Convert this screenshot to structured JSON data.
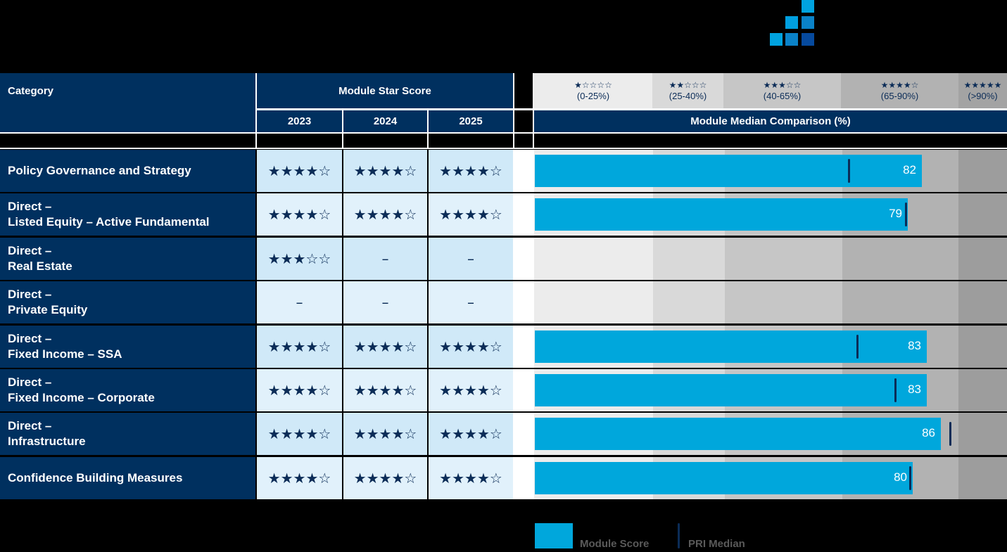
{
  "header": {
    "category_label": "Category",
    "module_star_score_label": "Module Star Score",
    "years": [
      "2023",
      "2024",
      "2025"
    ],
    "comparison_label": "Module Median Comparison (%)"
  },
  "bands": [
    {
      "stars": "★☆☆☆☆",
      "range": "(0-25%)",
      "from": 0,
      "to": 25,
      "color": "#ececec"
    },
    {
      "stars": "★★☆☆☆",
      "range": "(25-40%)",
      "from": 25,
      "to": 40,
      "color": "#d9d9d9"
    },
    {
      "stars": "★★★☆☆",
      "range": "(40-65%)",
      "from": 40,
      "to": 65,
      "color": "#c6c6c6"
    },
    {
      "stars": "★★★★☆",
      "range": "(65-90%)",
      "from": 65,
      "to": 90,
      "color": "#b2b2b2"
    },
    {
      "stars": "★★★★★",
      "range": "(>90%)",
      "from": 90,
      "to": 100,
      "color": "#9d9d9d"
    }
  ],
  "rows": [
    {
      "category": "Policy Governance and Strategy",
      "stars": [
        "★★★★☆",
        "★★★★☆",
        "★★★★☆"
      ],
      "score": 82,
      "score_label": "82",
      "median": 66.5
    },
    {
      "category": "Direct –\nListed Equity – Active Fundamental",
      "stars": [
        "★★★★☆",
        "★★★★☆",
        "★★★★☆"
      ],
      "score": 79,
      "score_label": "79",
      "median": 78.5
    },
    {
      "category": "Direct –\nReal Estate",
      "stars": [
        "★★★☆☆",
        "–",
        "–"
      ],
      "score": null,
      "score_label": "",
      "median": null
    },
    {
      "category": "Direct –\nPrivate Equity",
      "stars": [
        "–",
        "–",
        "–"
      ],
      "score": null,
      "score_label": "",
      "median": null
    },
    {
      "category": "Direct –\nFixed Income – SSA",
      "stars": [
        "★★★★☆",
        "★★★★☆",
        "★★★★☆"
      ],
      "score": 83,
      "score_label": "83",
      "median": 68.3
    },
    {
      "category": "Direct –\nFixed Income – Corporate",
      "stars": [
        "★★★★☆",
        "★★★★☆",
        "★★★★☆"
      ],
      "score": 83,
      "score_label": "83",
      "median": 76.3
    },
    {
      "category": "Direct –\nInfrastructure",
      "stars": [
        "★★★★☆",
        "★★★★☆",
        "★★★★☆"
      ],
      "score": 86,
      "score_label": "86",
      "median": 88.0
    },
    {
      "category": "Confidence Building Measures",
      "stars": [
        "★★★★☆",
        "★★★★☆",
        "★★★★☆"
      ],
      "score": 80,
      "score_label": "80",
      "median": 79.5
    }
  ],
  "legend": {
    "module_score": "Module Score",
    "pri_median": "PRI Median"
  },
  "colors": {
    "navy": "#00305f",
    "bar": "#00a7dc",
    "median": "#0b2c57",
    "row_odd": "#d0e9f8",
    "row_even": "#e1f1fb"
  },
  "chart_data": {
    "type": "bar",
    "orientation": "horizontal",
    "title": "Module Median Comparison (%)",
    "categories": [
      "Policy Governance and Strategy",
      "Direct – Listed Equity – Active Fundamental",
      "Direct – Real Estate",
      "Direct – Private Equity",
      "Direct – Fixed Income – SSA",
      "Direct – Fixed Income – Corporate",
      "Direct – Infrastructure",
      "Confidence Building Measures"
    ],
    "series": [
      {
        "name": "Module Score",
        "values": [
          82,
          79,
          null,
          null,
          83,
          83,
          86,
          80
        ]
      },
      {
        "name": "PRI Median",
        "values": [
          66.5,
          78.5,
          null,
          null,
          68.3,
          76.3,
          88.0,
          79.5
        ]
      }
    ],
    "star_scores": {
      "2023": [
        4,
        4,
        3,
        null,
        4,
        4,
        4,
        4
      ],
      "2024": [
        4,
        4,
        null,
        null,
        4,
        4,
        4,
        4
      ],
      "2025": [
        4,
        4,
        null,
        null,
        4,
        4,
        4,
        4
      ]
    },
    "bands": [
      "★☆☆☆☆ (0-25%)",
      "★★☆☆☆ (25-40%)",
      "★★★☆☆ (40-65%)",
      "★★★★☆ (65-90%)",
      "★★★★★ (>90%)"
    ],
    "xlim": [
      0,
      100
    ],
    "xlabel": "",
    "ylabel": "",
    "legend_position": "bottom"
  }
}
